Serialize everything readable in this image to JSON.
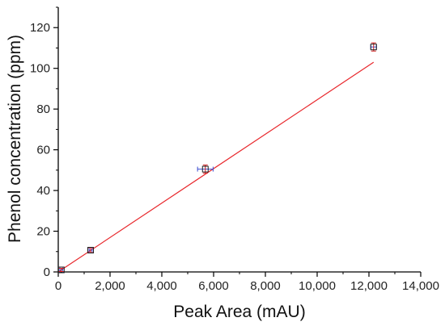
{
  "chart_data": {
    "type": "scatter",
    "xlabel": "Peak Area (mAU)",
    "ylabel": "Phenol concentration (ppm)",
    "xlim": [
      0,
      14000
    ],
    "ylim": [
      0,
      130
    ],
    "x_ticks": [
      0,
      2000,
      4000,
      6000,
      8000,
      10000,
      12000,
      14000
    ],
    "x_tick_labels": [
      "0",
      "2,000",
      "4,000",
      "6,000",
      "8,000",
      "10,000",
      "12,000",
      "14,000"
    ],
    "y_ticks": [
      0,
      20,
      40,
      60,
      80,
      100,
      120
    ],
    "y_tick_labels": [
      "0",
      "20",
      "40",
      "60",
      "80",
      "100",
      "120"
    ],
    "grid": false,
    "series": [
      {
        "marker": "open-square",
        "marker_color": "#222222",
        "x_error_color": "#3a4bd0",
        "y_error_color": "#d11a1a",
        "points": [
          {
            "x": 120,
            "y": 1,
            "x_err": 60,
            "y_err": 0.8
          },
          {
            "x": 1250,
            "y": 10.7,
            "x_err": 60,
            "y_err": 1.2
          },
          {
            "x": 5680,
            "y": 50.5,
            "x_err": 300,
            "y_err": 2.0
          },
          {
            "x": 12180,
            "y": 110.5,
            "x_err": 110,
            "y_err": 2.0
          }
        ]
      }
    ],
    "fit_line": {
      "color": "#e8262b",
      "x": [
        0,
        12180
      ],
      "y": [
        0,
        103
      ]
    }
  }
}
